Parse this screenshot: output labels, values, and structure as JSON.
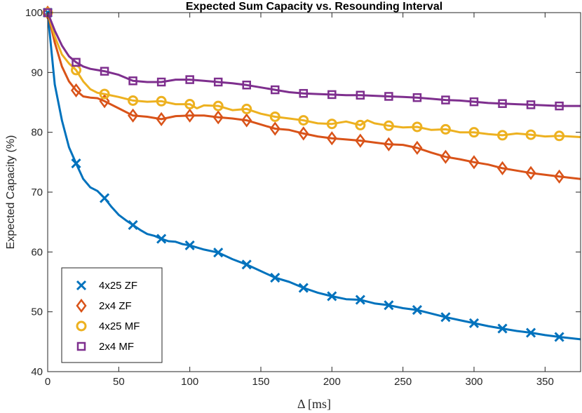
{
  "chart_data": {
    "type": "line",
    "title": "Expected Sum Capacity vs. Resounding Interval",
    "xlabel": "Δ [ms]",
    "ylabel": "Expected Capacity (%)",
    "xlim": [
      0,
      375
    ],
    "ylim": [
      40,
      100
    ],
    "xticks": [
      0,
      50,
      100,
      150,
      200,
      250,
      300,
      350
    ],
    "yticks": [
      40,
      50,
      60,
      70,
      80,
      90,
      100
    ],
    "legend_position": "bottom-left",
    "series": [
      {
        "name": "4x25 ZF",
        "color": "#0072BD",
        "marker": "x",
        "x": [
          0,
          5,
          10,
          15,
          20,
          25,
          30,
          35,
          40,
          45,
          50,
          55,
          60,
          65,
          70,
          75,
          80,
          85,
          90,
          95,
          100,
          110,
          120,
          130,
          140,
          150,
          160,
          170,
          180,
          190,
          200,
          210,
          220,
          230,
          240,
          250,
          260,
          270,
          280,
          290,
          300,
          310,
          320,
          330,
          340,
          350,
          360,
          375
        ],
        "y": [
          100,
          88,
          82,
          77.5,
          74.8,
          72.2,
          70.8,
          70.2,
          69,
          67.5,
          66.2,
          65.3,
          64.5,
          63.7,
          63,
          62.7,
          62.2,
          61.8,
          61.7,
          61.3,
          61.1,
          60.4,
          59.9,
          58.8,
          57.9,
          56.8,
          55.7,
          55,
          54,
          53.2,
          52.6,
          52.1,
          52,
          51.4,
          51.1,
          50.6,
          50.3,
          49.7,
          49.1,
          48.6,
          48.1,
          47.6,
          47.2,
          46.8,
          46.5,
          46.1,
          45.8,
          45.4
        ],
        "marker_x": [
          0,
          20,
          40,
          60,
          80,
          100,
          120,
          140,
          160,
          180,
          200,
          220,
          240,
          260,
          280,
          300,
          320,
          340,
          360
        ]
      },
      {
        "name": "2x4 ZF",
        "color": "#D95319",
        "marker": "diamond",
        "x": [
          0,
          5,
          10,
          15,
          20,
          25,
          30,
          35,
          40,
          50,
          60,
          70,
          80,
          90,
          100,
          110,
          120,
          130,
          140,
          150,
          160,
          170,
          180,
          190,
          200,
          210,
          220,
          230,
          240,
          250,
          260,
          270,
          280,
          290,
          300,
          310,
          320,
          330,
          340,
          350,
          360,
          375
        ],
        "y": [
          100,
          95,
          91,
          88.5,
          87,
          86,
          85.8,
          85.7,
          85.2,
          84,
          82.8,
          82.6,
          82.2,
          82.7,
          82.8,
          82.8,
          82.5,
          82.3,
          82,
          81.3,
          80.6,
          80.4,
          79.8,
          79.3,
          79,
          78.8,
          78.6,
          78.3,
          78,
          77.9,
          77.4,
          76.6,
          75.9,
          75.5,
          75,
          74.6,
          74,
          73.6,
          73.2,
          72.9,
          72.6,
          72.2
        ],
        "marker_x": [
          0,
          20,
          40,
          60,
          80,
          100,
          120,
          140,
          160,
          180,
          200,
          220,
          240,
          260,
          280,
          300,
          320,
          340,
          360
        ]
      },
      {
        "name": "4x25 MF",
        "color": "#EDB120",
        "marker": "circle",
        "x": [
          0,
          5,
          10,
          15,
          20,
          25,
          30,
          35,
          40,
          50,
          60,
          70,
          80,
          90,
          100,
          105,
          110,
          120,
          130,
          140,
          150,
          160,
          170,
          180,
          190,
          200,
          210,
          220,
          225,
          230,
          240,
          250,
          260,
          270,
          280,
          290,
          300,
          310,
          320,
          330,
          340,
          350,
          360,
          375
        ],
        "y": [
          100,
          96,
          93,
          91.5,
          90.4,
          88.5,
          87.2,
          86.6,
          86.4,
          85.9,
          85.3,
          85.1,
          85.2,
          84.7,
          84.7,
          84,
          84.5,
          84.4,
          83.7,
          83.9,
          83.1,
          82.6,
          82.3,
          82,
          81.5,
          81.4,
          81.8,
          81.2,
          82,
          81.5,
          81.1,
          80.8,
          80.9,
          80.4,
          80.5,
          80,
          80,
          79.7,
          79.5,
          79.8,
          79.6,
          79.3,
          79.4,
          79.2
        ],
        "marker_x": [
          0,
          20,
          40,
          60,
          80,
          100,
          120,
          140,
          160,
          180,
          200,
          220,
          240,
          260,
          280,
          300,
          320,
          340,
          360
        ]
      },
      {
        "name": "2x4 MF",
        "color": "#7E2F8E",
        "marker": "square",
        "x": [
          0,
          5,
          10,
          15,
          20,
          25,
          30,
          35,
          40,
          50,
          60,
          70,
          80,
          90,
          100,
          110,
          120,
          130,
          140,
          150,
          160,
          170,
          180,
          190,
          200,
          210,
          220,
          230,
          240,
          250,
          260,
          270,
          280,
          290,
          300,
          310,
          320,
          330,
          340,
          350,
          360,
          375
        ],
        "y": [
          100,
          97,
          94.5,
          92.7,
          91.7,
          91,
          90.6,
          90.4,
          90.2,
          89.6,
          88.6,
          88.4,
          88.4,
          88.8,
          88.8,
          88.6,
          88.4,
          88.2,
          87.9,
          87.5,
          87.1,
          86.7,
          86.5,
          86.4,
          86.3,
          86.2,
          86.2,
          86.1,
          86,
          85.9,
          85.8,
          85.6,
          85.4,
          85.3,
          85.1,
          84.9,
          84.8,
          84.7,
          84.6,
          84.5,
          84.4,
          84.4
        ],
        "marker_x": [
          0,
          20,
          40,
          60,
          80,
          100,
          120,
          140,
          160,
          180,
          200,
          220,
          240,
          260,
          280,
          300,
          320,
          340,
          360
        ]
      }
    ]
  }
}
